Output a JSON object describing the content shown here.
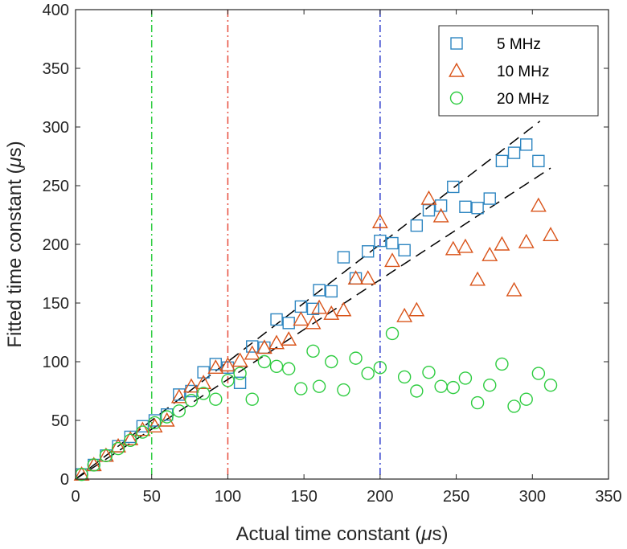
{
  "chart_data": {
    "type": "scatter",
    "title": "",
    "xlabel": "Actual time constant (",
    "ylabel": "Fitted time constant (",
    "unit_symbol": "μ",
    "unit_suffix": "s)",
    "xlim": [
      0,
      350
    ],
    "ylim": [
      0,
      400
    ],
    "xticks": [
      0,
      50,
      100,
      150,
      200,
      250,
      300,
      350
    ],
    "yticks": [
      0,
      50,
      100,
      150,
      200,
      250,
      300,
      350,
      400
    ],
    "legend_position": "top-right",
    "series": [
      {
        "name": "5 MHz",
        "marker": "square",
        "color": "#2E86C1",
        "x": [
          4,
          12,
          20,
          28,
          36,
          44,
          52,
          60,
          68,
          76,
          84,
          92,
          100,
          108,
          116,
          124,
          132,
          140,
          148,
          156,
          160,
          168,
          176,
          184,
          192,
          200,
          208,
          216,
          224,
          232,
          240,
          248,
          256,
          264,
          272,
          280,
          288,
          296,
          304
        ],
        "y": [
          4,
          12,
          20,
          28,
          36,
          45,
          50,
          55,
          72,
          75,
          91,
          98,
          95,
          82,
          113,
          112,
          136,
          133,
          147,
          145,
          161,
          160,
          189,
          171,
          194,
          203,
          201,
          195,
          216,
          229,
          233,
          249,
          232,
          231,
          239,
          271,
          278,
          285,
          271
        ]
      },
      {
        "name": "10 MHz",
        "marker": "triangle",
        "color": "#D95319",
        "x": [
          4,
          12,
          20,
          28,
          36,
          44,
          52,
          60,
          68,
          76,
          84,
          92,
          100,
          108,
          116,
          124,
          132,
          140,
          148,
          156,
          160,
          168,
          176,
          184,
          192,
          200,
          208,
          216,
          224,
          232,
          240,
          248,
          256,
          264,
          272,
          280,
          288,
          296,
          304,
          312
        ],
        "y": [
          4,
          12,
          20,
          28,
          34,
          42,
          45,
          50,
          70,
          79,
          82,
          95,
          97,
          101,
          107,
          112,
          116,
          119,
          136,
          133,
          146,
          141,
          144,
          171,
          171,
          219,
          186,
          139,
          144,
          239,
          224,
          196,
          198,
          170,
          191,
          200,
          161,
          202,
          233,
          208
        ]
      },
      {
        "name": "20 MHz",
        "marker": "circle",
        "color": "#2ECC40",
        "x": [
          4,
          12,
          20,
          28,
          36,
          44,
          52,
          60,
          68,
          76,
          84,
          92,
          100,
          108,
          116,
          124,
          132,
          140,
          148,
          156,
          160,
          168,
          176,
          184,
          192,
          200,
          208,
          216,
          224,
          232,
          240,
          248,
          256,
          264,
          272,
          280,
          288,
          296,
          304,
          312
        ],
        "y": [
          4,
          12,
          20,
          26,
          33,
          40,
          48,
          53,
          58,
          67,
          73,
          68,
          84,
          90,
          68,
          100,
          96,
          94,
          77,
          109,
          79,
          100,
          76,
          103,
          90,
          95,
          124,
          87,
          75,
          91,
          79,
          78,
          86,
          65,
          80,
          98,
          62,
          68,
          90,
          80
        ]
      }
    ],
    "reference_lines": [
      {
        "name": "upper-bound",
        "style": "dashed",
        "color": "#000000",
        "x": [
          0,
          305
        ],
        "y": [
          0,
          305
        ]
      },
      {
        "name": "lower-bound",
        "style": "dashed",
        "color": "#000000",
        "x": [
          0,
          312
        ],
        "y": [
          0,
          265
        ]
      }
    ],
    "vertical_lines": [
      {
        "name": "green-marker",
        "x": 50,
        "color": "#2ECC40"
      },
      {
        "name": "red-marker",
        "x": 100,
        "color": "#E74C3C"
      },
      {
        "name": "blue-marker",
        "x": 200,
        "color": "#2E3DCC"
      }
    ]
  }
}
